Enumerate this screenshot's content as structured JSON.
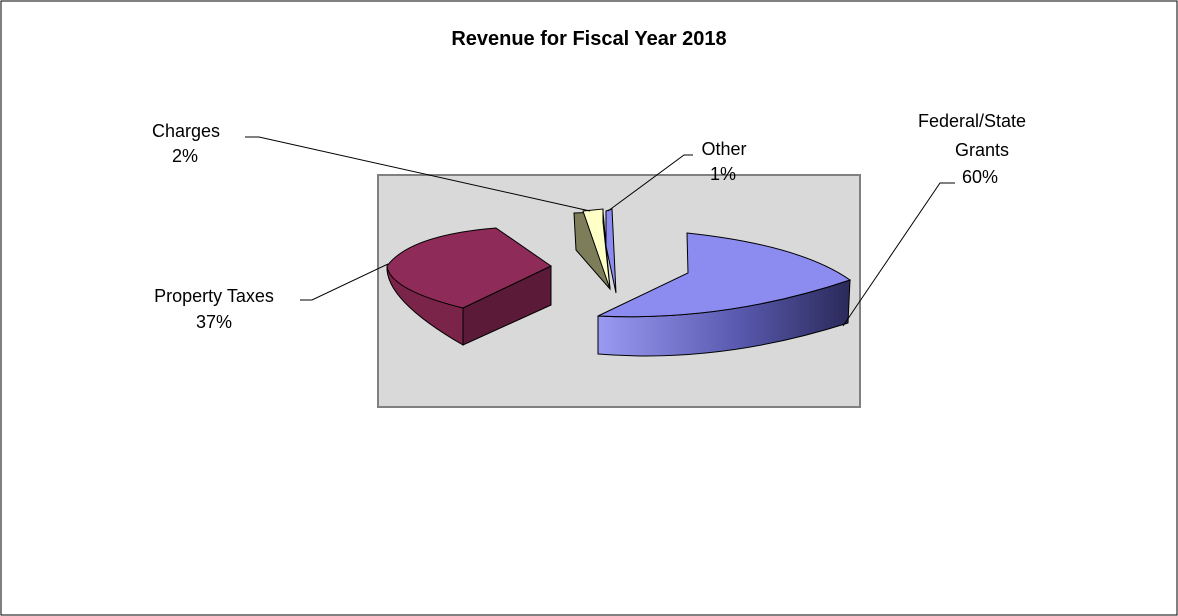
{
  "chart_data": {
    "type": "pie",
    "title": "Revenue for Fiscal Year 2018",
    "slices": [
      {
        "name": "Federal/State Grants",
        "label_lines": [
          "Federal/State",
          "Grants"
        ],
        "value": 60,
        "value_label": "60%",
        "color": "#8c8cf0"
      },
      {
        "name": "Property Taxes",
        "label_lines": [
          "Property Taxes"
        ],
        "value": 37,
        "value_label": "37%",
        "color": "#8e2b58"
      },
      {
        "name": "Charges",
        "label_lines": [
          "Charges"
        ],
        "value": 2,
        "value_label": "2%",
        "color": "#ffffc8"
      },
      {
        "name": "Other",
        "label_lines": [
          "Other"
        ],
        "value": 1,
        "value_label": "1%",
        "color": "#8c8cf0"
      }
    ],
    "legend": "none",
    "exploded": true,
    "style": "3d"
  }
}
